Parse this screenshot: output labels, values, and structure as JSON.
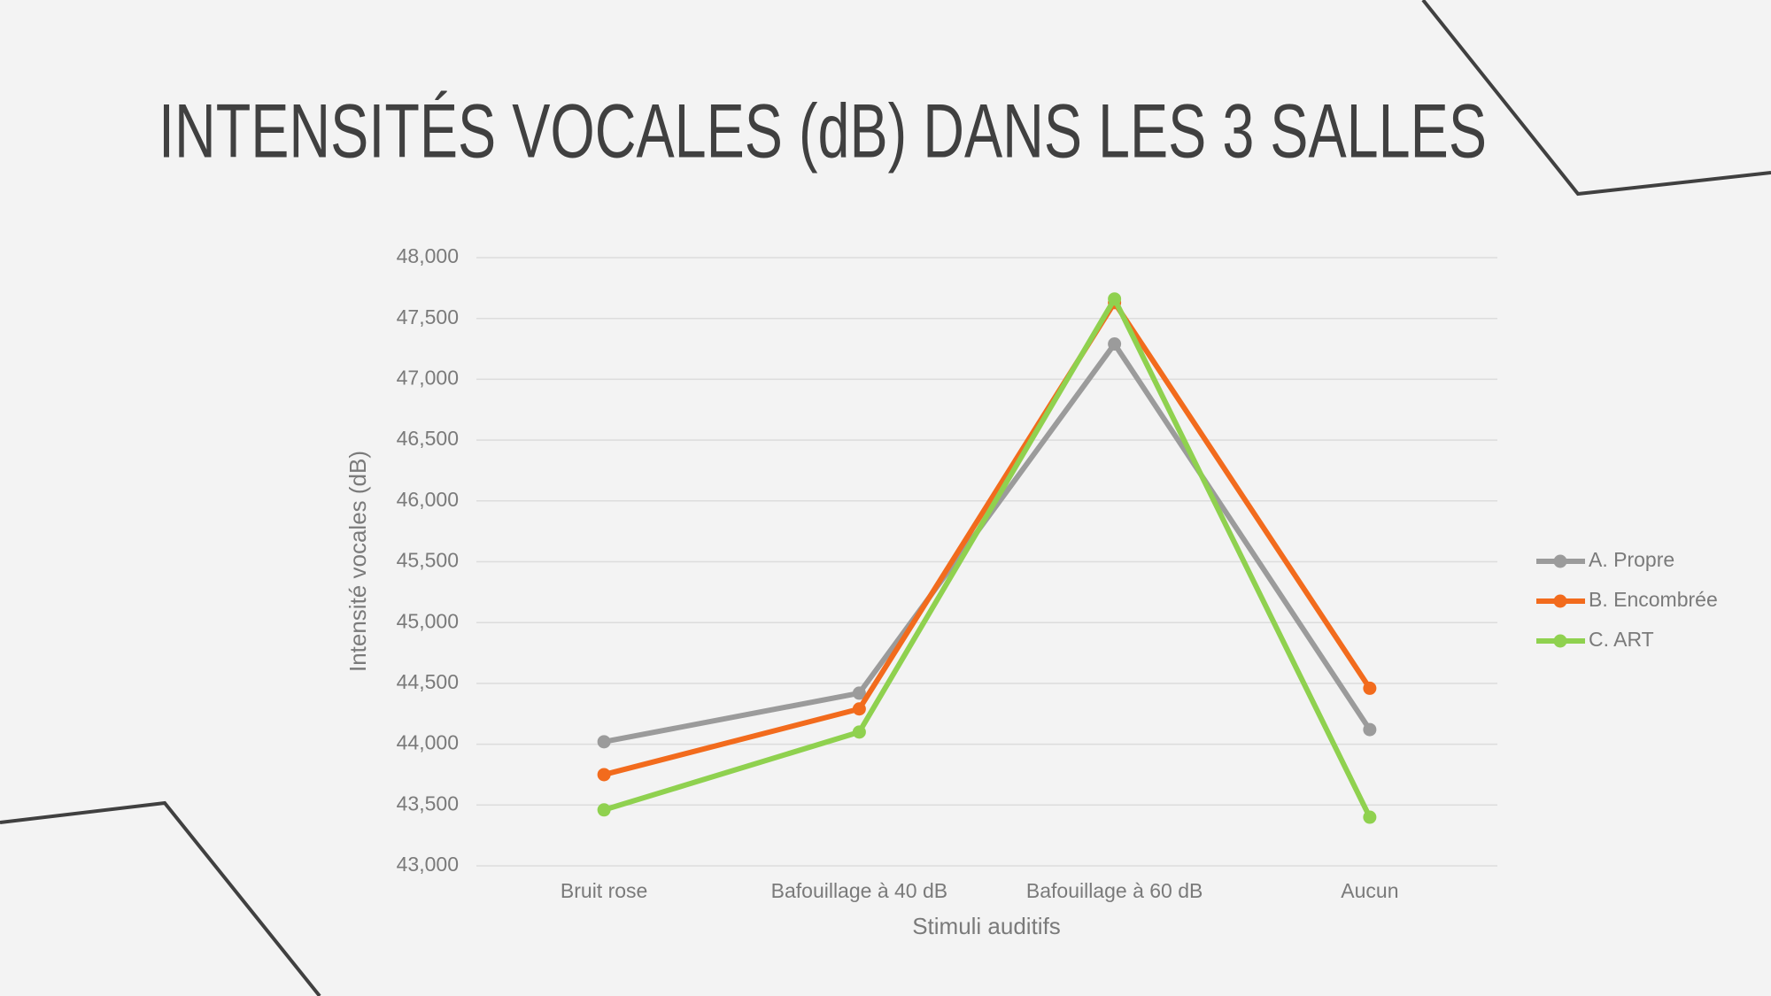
{
  "chart_data": {
    "type": "line",
    "title": "INTENSITÉS VOCALES (dB) DANS LES 3 SALLES",
    "x_label": "Stimuli auditifs",
    "y_label": "Intensité vocales (dB)",
    "categories": [
      "Bruit rose",
      "Bafouillage à 40 dB",
      "Bafouillage à 60 dB",
      "Aucun"
    ],
    "series": [
      {
        "name": "A. Propre",
        "color": "#9b9b9b",
        "values": [
          44020,
          44420,
          47290,
          44120
        ]
      },
      {
        "name": "B. Encombrée",
        "color": "#f26b1d",
        "values": [
          43750,
          44290,
          47630,
          44460
        ]
      },
      {
        "name": "C. ART",
        "color": "#8fd14f",
        "values": [
          43460,
          44100,
          47660,
          43400
        ]
      }
    ],
    "ylim": [
      43000,
      48000
    ],
    "yticks": [
      {
        "value": 43000,
        "label": "43,000"
      },
      {
        "value": 43500,
        "label": "43,500"
      },
      {
        "value": 44000,
        "label": "44,000"
      },
      {
        "value": 44500,
        "label": "44,500"
      },
      {
        "value": 45000,
        "label": "45,000"
      },
      {
        "value": 45500,
        "label": "45,500"
      },
      {
        "value": 46000,
        "label": "46,000"
      },
      {
        "value": 46500,
        "label": "46,500"
      },
      {
        "value": 47000,
        "label": "47,000"
      },
      {
        "value": 47500,
        "label": "47,500"
      },
      {
        "value": 48000,
        "label": "48,000"
      }
    ],
    "grid": true,
    "legend": "right"
  }
}
